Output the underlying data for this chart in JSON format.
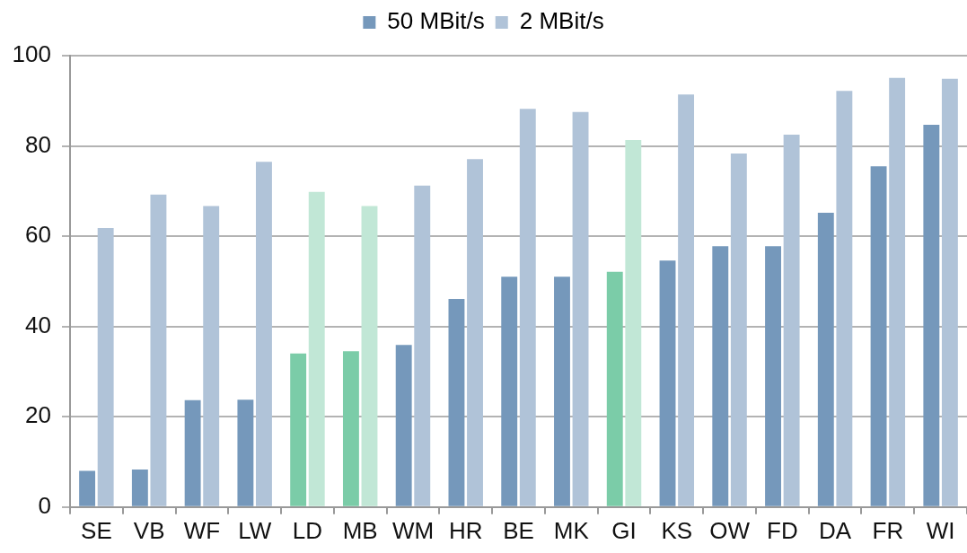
{
  "chart_data": {
    "type": "bar",
    "categories": [
      "SE",
      "VB",
      "WF",
      "LW",
      "LD",
      "MB",
      "WM",
      "HR",
      "BE",
      "MK",
      "GI",
      "KS",
      "OW",
      "FD",
      "DA",
      "FR",
      "WI"
    ],
    "series": [
      {
        "name": "50 MBit/s",
        "color": "#7598bb",
        "colors": [
          "#7598bb",
          "#7598bb",
          "#7598bb",
          "#7598bb",
          "#7bcca8",
          "#7bcca8",
          "#7598bb",
          "#7598bb",
          "#7598bb",
          "#7598bb",
          "#7bcca8",
          "#7598bb",
          "#7598bb",
          "#7598bb",
          "#7598bb",
          "#7598bb",
          "#7598bb"
        ],
        "values": [
          8,
          8.3,
          23.7,
          23.8,
          34,
          34.5,
          35.9,
          46.1,
          51,
          51,
          52.1,
          54.6,
          57.8,
          57.8,
          65.2,
          75.5,
          84.7
        ]
      },
      {
        "name": "2 MBit/s",
        "color": "#b0c3d8",
        "colors": [
          "#b0c3d8",
          "#b0c3d8",
          "#b0c3d8",
          "#b0c3d8",
          "#c1e7d6",
          "#c1e7d6",
          "#b0c3d8",
          "#b0c3d8",
          "#b0c3d8",
          "#b0c3d8",
          "#c1e7d6",
          "#b0c3d8",
          "#b0c3d8",
          "#b0c3d8",
          "#b0c3d8",
          "#b0c3d8",
          "#b0c3d8"
        ],
        "values": [
          61.8,
          69.2,
          66.7,
          76.5,
          69.8,
          66.7,
          71.2,
          77.1,
          88.2,
          87.5,
          81.3,
          91.4,
          78.3,
          82.5,
          92.2,
          95.1,
          94.9
        ]
      }
    ],
    "ylim": [
      0,
      100
    ],
    "yticks": [
      0,
      20,
      40,
      60,
      80,
      100
    ],
    "grid": "y",
    "legend": "top"
  }
}
